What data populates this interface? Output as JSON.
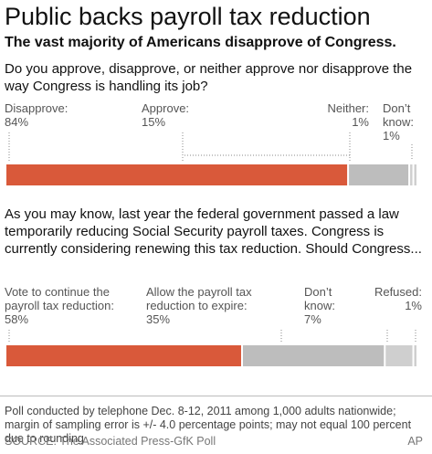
{
  "title": "Public backs payroll tax reduction",
  "subtitle": "The vast majority of Americans disapprove of Congress.",
  "footnote": "Poll conducted by telephone Dec. 8-12, 2011 among 1,000 adults nationwide; margin of sampling error is +/- 4.0 percentage points; may not equal 100 percent due to rounding",
  "source": "SOURCE: The Associated Press-GfK Poll",
  "credit": "AP",
  "colors": {
    "primary": "#d9593a",
    "secondary": "#bdbdbd",
    "tertiary": "#cfcfcf"
  },
  "chart_data": [
    {
      "type": "bar",
      "orientation": "horizontal-stacked",
      "question": "Do you approve, disapprove, or neither approve nor disapprove the way Congress is handling its job?",
      "categories": [
        "Disapprove:",
        "Approve:",
        "Neither:",
        "Don’t know:"
      ],
      "category_lines": [
        [
          "Disapprove:"
        ],
        [
          "Approve:"
        ],
        [
          "Neither:"
        ],
        [
          "Don’t",
          "know:"
        ]
      ],
      "value_labels": [
        "84%",
        "15%",
        "1%",
        "1%"
      ],
      "values": [
        84,
        15,
        1,
        1
      ]
    },
    {
      "type": "bar",
      "orientation": "horizontal-stacked",
      "question": "As you may know, last year the federal government passed a law temporarily reducing Social Security payroll taxes. Congress is currently considering renewing this tax reduction. Should Congress...",
      "categories": [
        "Vote to continue the payroll tax reduction:",
        "Allow the payroll tax reduction to expire:",
        "Don’t know:",
        "Refused:"
      ],
      "category_lines": [
        [
          "Vote to continue the",
          "payroll tax reduction:"
        ],
        [
          "Allow the payroll tax",
          "reduction to expire:"
        ],
        [
          "Don’t",
          "know:"
        ],
        [
          "Refused:"
        ]
      ],
      "value_labels": [
        "58%",
        "35%",
        "7%",
        "1%"
      ],
      "values": [
        58,
        35,
        7,
        1
      ]
    }
  ]
}
